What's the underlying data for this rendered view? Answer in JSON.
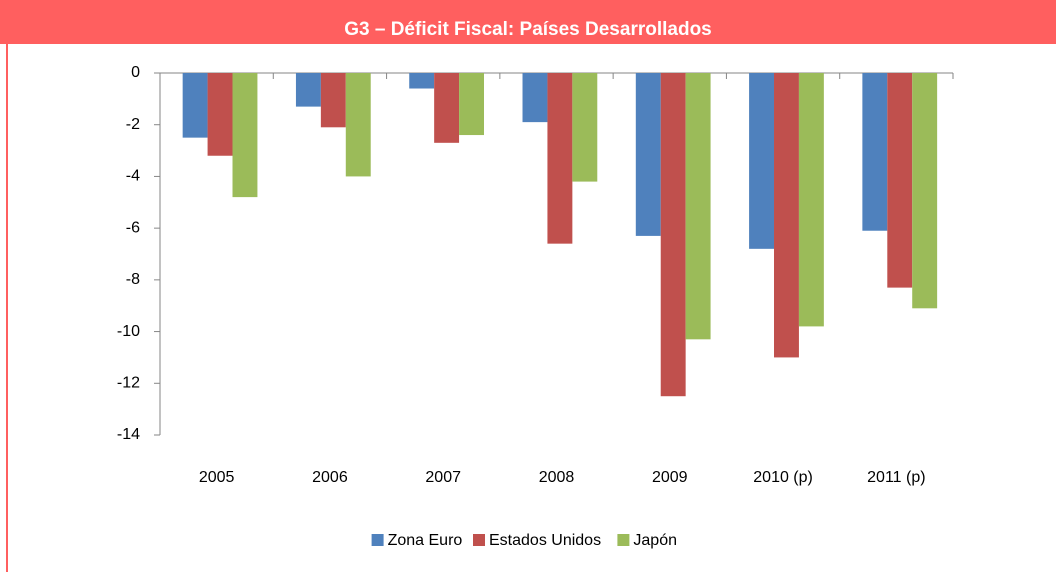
{
  "chart_data": {
    "type": "bar",
    "title": "G3 – Déficit Fiscal: Países Desarrollados",
    "categories": [
      "2005",
      "2006",
      "2007",
      "2008",
      "2009",
      "2010 (p)",
      "2011 (p)"
    ],
    "series": [
      {
        "name": "Zona Euro",
        "color": "#4f81bd",
        "values": [
          -2.5,
          -1.3,
          -0.6,
          -1.9,
          -6.3,
          -6.8,
          -6.1
        ]
      },
      {
        "name": "Estados Unidos",
        "color": "#c0504d",
        "values": [
          -3.2,
          -2.1,
          -2.7,
          -6.6,
          -12.5,
          -11,
          -8.3
        ]
      },
      {
        "name": "Japón",
        "color": "#9bbb59",
        "values": [
          -4.8,
          -4,
          -2.4,
          -4.2,
          -10.3,
          -9.8,
          -9.1
        ]
      }
    ],
    "ylim": [
      -14,
      0
    ],
    "yticks": [
      0,
      -2,
      -4,
      -6,
      -8,
      -10,
      -12,
      -14
    ],
    "legend": "bottom"
  }
}
